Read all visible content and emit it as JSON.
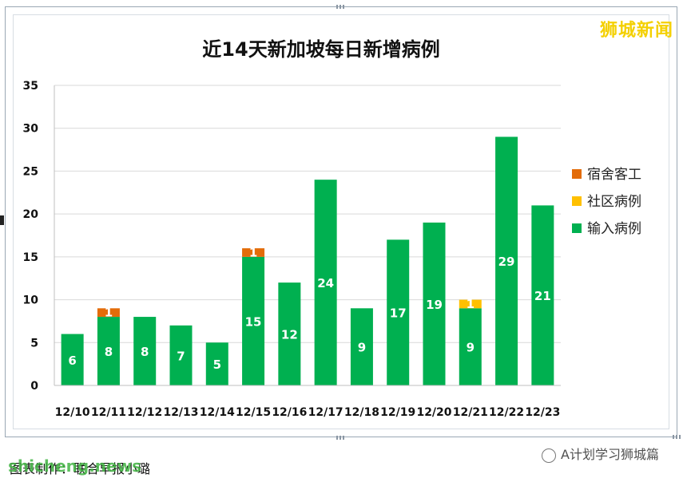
{
  "brand": "狮城新闻",
  "watermark_right": "A计划学习狮城篇",
  "caption": "图表制作：联合早报小璐",
  "caption_watermark": "shicheng.news",
  "chart_data": {
    "type": "bar",
    "stacked": true,
    "title": "近14天新加坡每日新增病例",
    "categories": [
      "12/10",
      "12/11",
      "12/12",
      "12/13",
      "12/14",
      "12/15",
      "12/16",
      "12/17",
      "12/18",
      "12/19",
      "12/20",
      "12/21",
      "12/22",
      "12/23"
    ],
    "series": [
      {
        "name": "输入病例",
        "color": "#00b050",
        "values": [
          6,
          8,
          8,
          7,
          5,
          15,
          12,
          24,
          9,
          17,
          19,
          9,
          29,
          21
        ]
      },
      {
        "name": "社区病例",
        "color": "#ffc000",
        "values": [
          0,
          0,
          0,
          0,
          0,
          0,
          0,
          0,
          0,
          0,
          0,
          1,
          0,
          0
        ]
      },
      {
        "name": "宿舍客工",
        "color": "#e36c09",
        "values": [
          0,
          1,
          0,
          0,
          0,
          1,
          0,
          0,
          0,
          0,
          0,
          0,
          0,
          0
        ]
      }
    ],
    "legend_order": [
      "宿舍客工",
      "社区病例",
      "输入病例"
    ],
    "ylim": [
      0,
      35
    ],
    "yticks": [
      "0",
      "5",
      "10",
      "15",
      "20",
      "25",
      "30",
      "35"
    ],
    "grid": true,
    "legend_position": "right"
  }
}
